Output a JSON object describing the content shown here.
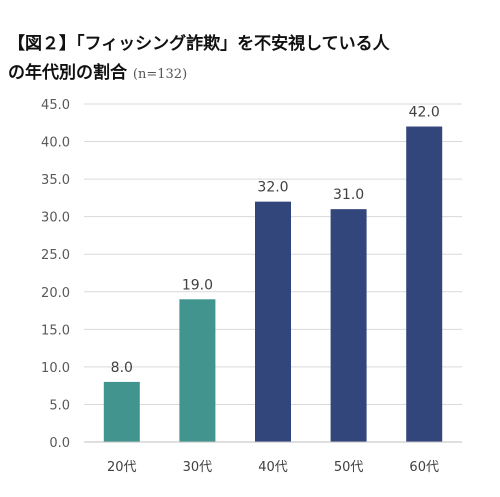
{
  "title": {
    "line1": "【図２】「フィッシング詐欺」を不安視している人",
    "line2": "の年代別の割合",
    "sample_size": "(n=132)"
  },
  "colors": {
    "teal": "#42948F",
    "navy": "#33467C",
    "grid": "#D9D9D9",
    "axis": "#BFBFBF"
  },
  "chart_data": {
    "type": "bar",
    "categories": [
      "20代",
      "30代",
      "40代",
      "50代",
      "60代"
    ],
    "values": [
      8.0,
      19.0,
      32.0,
      31.0,
      42.0
    ],
    "data_labels": [
      "8.0",
      "19.0",
      "32.0",
      "31.0",
      "42.0"
    ],
    "bar_colors": [
      "#42948F",
      "#42948F",
      "#33467C",
      "#33467C",
      "#33467C"
    ],
    "ylim": [
      0,
      45
    ],
    "yticks": [
      "0.0",
      "5.0",
      "10.0",
      "15.0",
      "20.0",
      "25.0",
      "30.0",
      "35.0",
      "40.0",
      "45.0"
    ],
    "ytick_values": [
      0,
      5,
      10,
      15,
      20,
      25,
      30,
      35,
      40,
      45
    ],
    "grid": true,
    "legend": "none",
    "xlabel": "",
    "ylabel": ""
  }
}
